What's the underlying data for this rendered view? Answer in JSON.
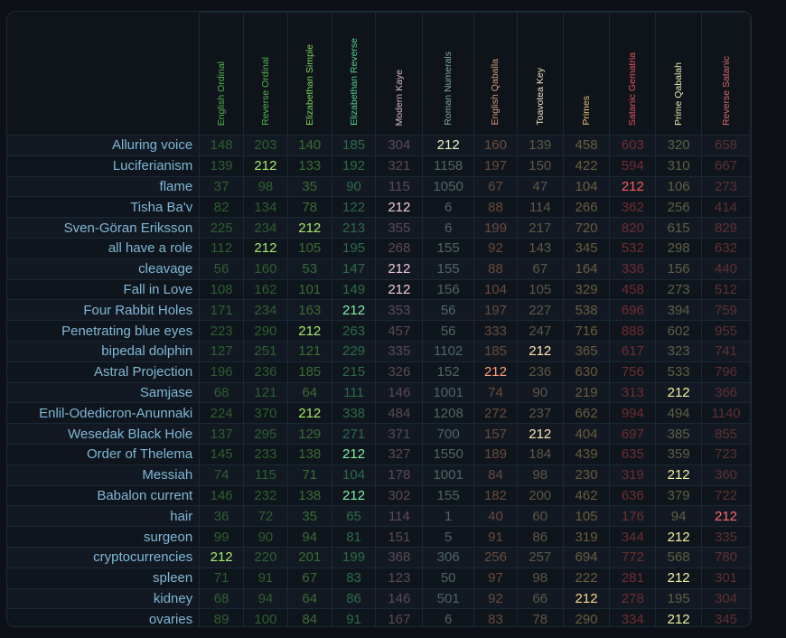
{
  "columns": [
    {
      "label": "English Ordinal",
      "color": "#53b64f"
    },
    {
      "label": "Reverse Ordinal",
      "color": "#53b64f"
    },
    {
      "label": "Elizabethan Simple",
      "color": "#7fd55a"
    },
    {
      "label": "Elizabethan Reverse",
      "color": "#52d28c"
    },
    {
      "label": "Modern Kaye",
      "color": "#d6b5c4"
    },
    {
      "label": "Roman Numerals",
      "color": "#7aa89e"
    },
    {
      "label": "English Qaballa",
      "color": "#d69a7a"
    },
    {
      "label": "Toavotea Key",
      "color": "#e8ddc0"
    },
    {
      "label": "Primes",
      "color": "#e8c27a"
    },
    {
      "label": "Satanic Gematria",
      "color": "#e8545f"
    },
    {
      "label": "Prime Qabalah",
      "color": "#e8eab0"
    },
    {
      "label": "Reverse Satanic",
      "color": "#d66a72"
    }
  ],
  "colors": {
    "dim": [
      "#2e5e31",
      "#2e5e31",
      "#3a6b36",
      "#2d6a4a",
      "#5a4a52",
      "#4f6560",
      "#684a3c",
      "#5e5648",
      "#6a5c3f",
      "#6e2c33",
      "#5e5f44",
      "#5d2f34"
    ],
    "highlight": [
      "#a5e86a",
      "#a5e86a",
      "#a5e86a",
      "#7ff0a8",
      "#f0c8d4",
      "#e8f4c0",
      "#ff9f7a",
      "#ffe2b0",
      "#ffd58a",
      "#ff5a5a",
      "#f0f0a0",
      "#ff6a6a"
    ],
    "name": "#7fb7d6",
    "background": "#0f141b"
  },
  "rows": [
    {
      "name": "Alluring voice",
      "values": [
        "148",
        "203",
        "140",
        "185",
        "304",
        "212",
        "160",
        "139",
        "458",
        "603",
        "320",
        "658"
      ]
    },
    {
      "name": "Luciferianism",
      "values": [
        "139",
        "212",
        "133",
        "192",
        "321",
        "1158",
        "197",
        "150",
        "422",
        "594",
        "310",
        "667"
      ]
    },
    {
      "name": "flame",
      "values": [
        "37",
        "98",
        "35",
        "90",
        "115",
        "1050",
        "67",
        "47",
        "104",
        "212",
        "106",
        "273"
      ]
    },
    {
      "name": "Tisha Ba'v",
      "values": [
        "82",
        "134",
        "78",
        "122",
        "212",
        "6",
        "88",
        "114",
        "266",
        "362",
        "256",
        "414"
      ]
    },
    {
      "name": "Sven-Göran Eriksson",
      "values": [
        "225",
        "234",
        "212",
        "213",
        "355",
        "6",
        "199",
        "217",
        "720",
        "820",
        "615",
        "829"
      ]
    },
    {
      "name": "all have a role",
      "values": [
        "112",
        "212",
        "105",
        "195",
        "268",
        "155",
        "92",
        "143",
        "345",
        "532",
        "298",
        "632"
      ]
    },
    {
      "name": "cleavage",
      "values": [
        "56",
        "160",
        "53",
        "147",
        "212",
        "155",
        "88",
        "67",
        "164",
        "336",
        "156",
        "440"
      ]
    },
    {
      "name": "Fall in Love",
      "values": [
        "108",
        "162",
        "101",
        "149",
        "212",
        "156",
        "104",
        "105",
        "329",
        "458",
        "273",
        "512"
      ]
    },
    {
      "name": "Four Rabbit Holes",
      "values": [
        "171",
        "234",
        "163",
        "212",
        "353",
        "56",
        "197",
        "227",
        "538",
        "696",
        "394",
        "759"
      ]
    },
    {
      "name": "Penetrating blue eyes",
      "values": [
        "223",
        "290",
        "212",
        "263",
        "457",
        "56",
        "333",
        "247",
        "716",
        "888",
        "602",
        "955"
      ]
    },
    {
      "name": "bipedal dolphin",
      "values": [
        "127",
        "251",
        "121",
        "229",
        "335",
        "1102",
        "185",
        "212",
        "365",
        "617",
        "323",
        "741"
      ]
    },
    {
      "name": "Astral Projection",
      "values": [
        "196",
        "236",
        "185",
        "215",
        "326",
        "152",
        "212",
        "236",
        "630",
        "756",
        "533",
        "796"
      ]
    },
    {
      "name": "Samjase",
      "values": [
        "68",
        "121",
        "64",
        "111",
        "146",
        "1001",
        "74",
        "90",
        "219",
        "313",
        "212",
        "366"
      ]
    },
    {
      "name": "Enlil-Odedicron-Anunnaki",
      "values": [
        "224",
        "370",
        "212",
        "338",
        "484",
        "1208",
        "272",
        "237",
        "662",
        "994",
        "494",
        "1140"
      ]
    },
    {
      "name": "Wesedak Black Hole",
      "values": [
        "137",
        "295",
        "129",
        "271",
        "371",
        "700",
        "157",
        "212",
        "404",
        "697",
        "385",
        "855"
      ]
    },
    {
      "name": "Order of Thelema",
      "values": [
        "145",
        "233",
        "138",
        "212",
        "327",
        "1550",
        "189",
        "184",
        "439",
        "635",
        "359",
        "723"
      ]
    },
    {
      "name": "Messiah",
      "values": [
        "74",
        "115",
        "71",
        "104",
        "178",
        "1001",
        "84",
        "98",
        "230",
        "319",
        "212",
        "360"
      ]
    },
    {
      "name": "Babalon current",
      "values": [
        "146",
        "232",
        "138",
        "212",
        "302",
        "155",
        "182",
        "200",
        "462",
        "636",
        "379",
        "722"
      ]
    },
    {
      "name": "hair",
      "values": [
        "36",
        "72",
        "35",
        "65",
        "114",
        "1",
        "40",
        "60",
        "105",
        "176",
        "94",
        "212"
      ]
    },
    {
      "name": "surgeon",
      "values": [
        "99",
        "90",
        "94",
        "81",
        "151",
        "5",
        "91",
        "86",
        "319",
        "344",
        "212",
        "335"
      ]
    },
    {
      "name": "cryptocurrencies",
      "values": [
        "212",
        "220",
        "201",
        "199",
        "368",
        "306",
        "256",
        "257",
        "694",
        "772",
        "568",
        "780"
      ]
    },
    {
      "name": "spleen",
      "values": [
        "71",
        "91",
        "67",
        "83",
        "123",
        "50",
        "97",
        "98",
        "222",
        "281",
        "212",
        "301"
      ]
    },
    {
      "name": "kidney",
      "values": [
        "68",
        "94",
        "64",
        "86",
        "146",
        "501",
        "92",
        "66",
        "212",
        "278",
        "195",
        "304"
      ]
    },
    {
      "name": "ovaries",
      "values": [
        "89",
        "100",
        "84",
        "91",
        "167",
        "6",
        "83",
        "78",
        "290",
        "334",
        "212",
        "345"
      ]
    }
  ]
}
